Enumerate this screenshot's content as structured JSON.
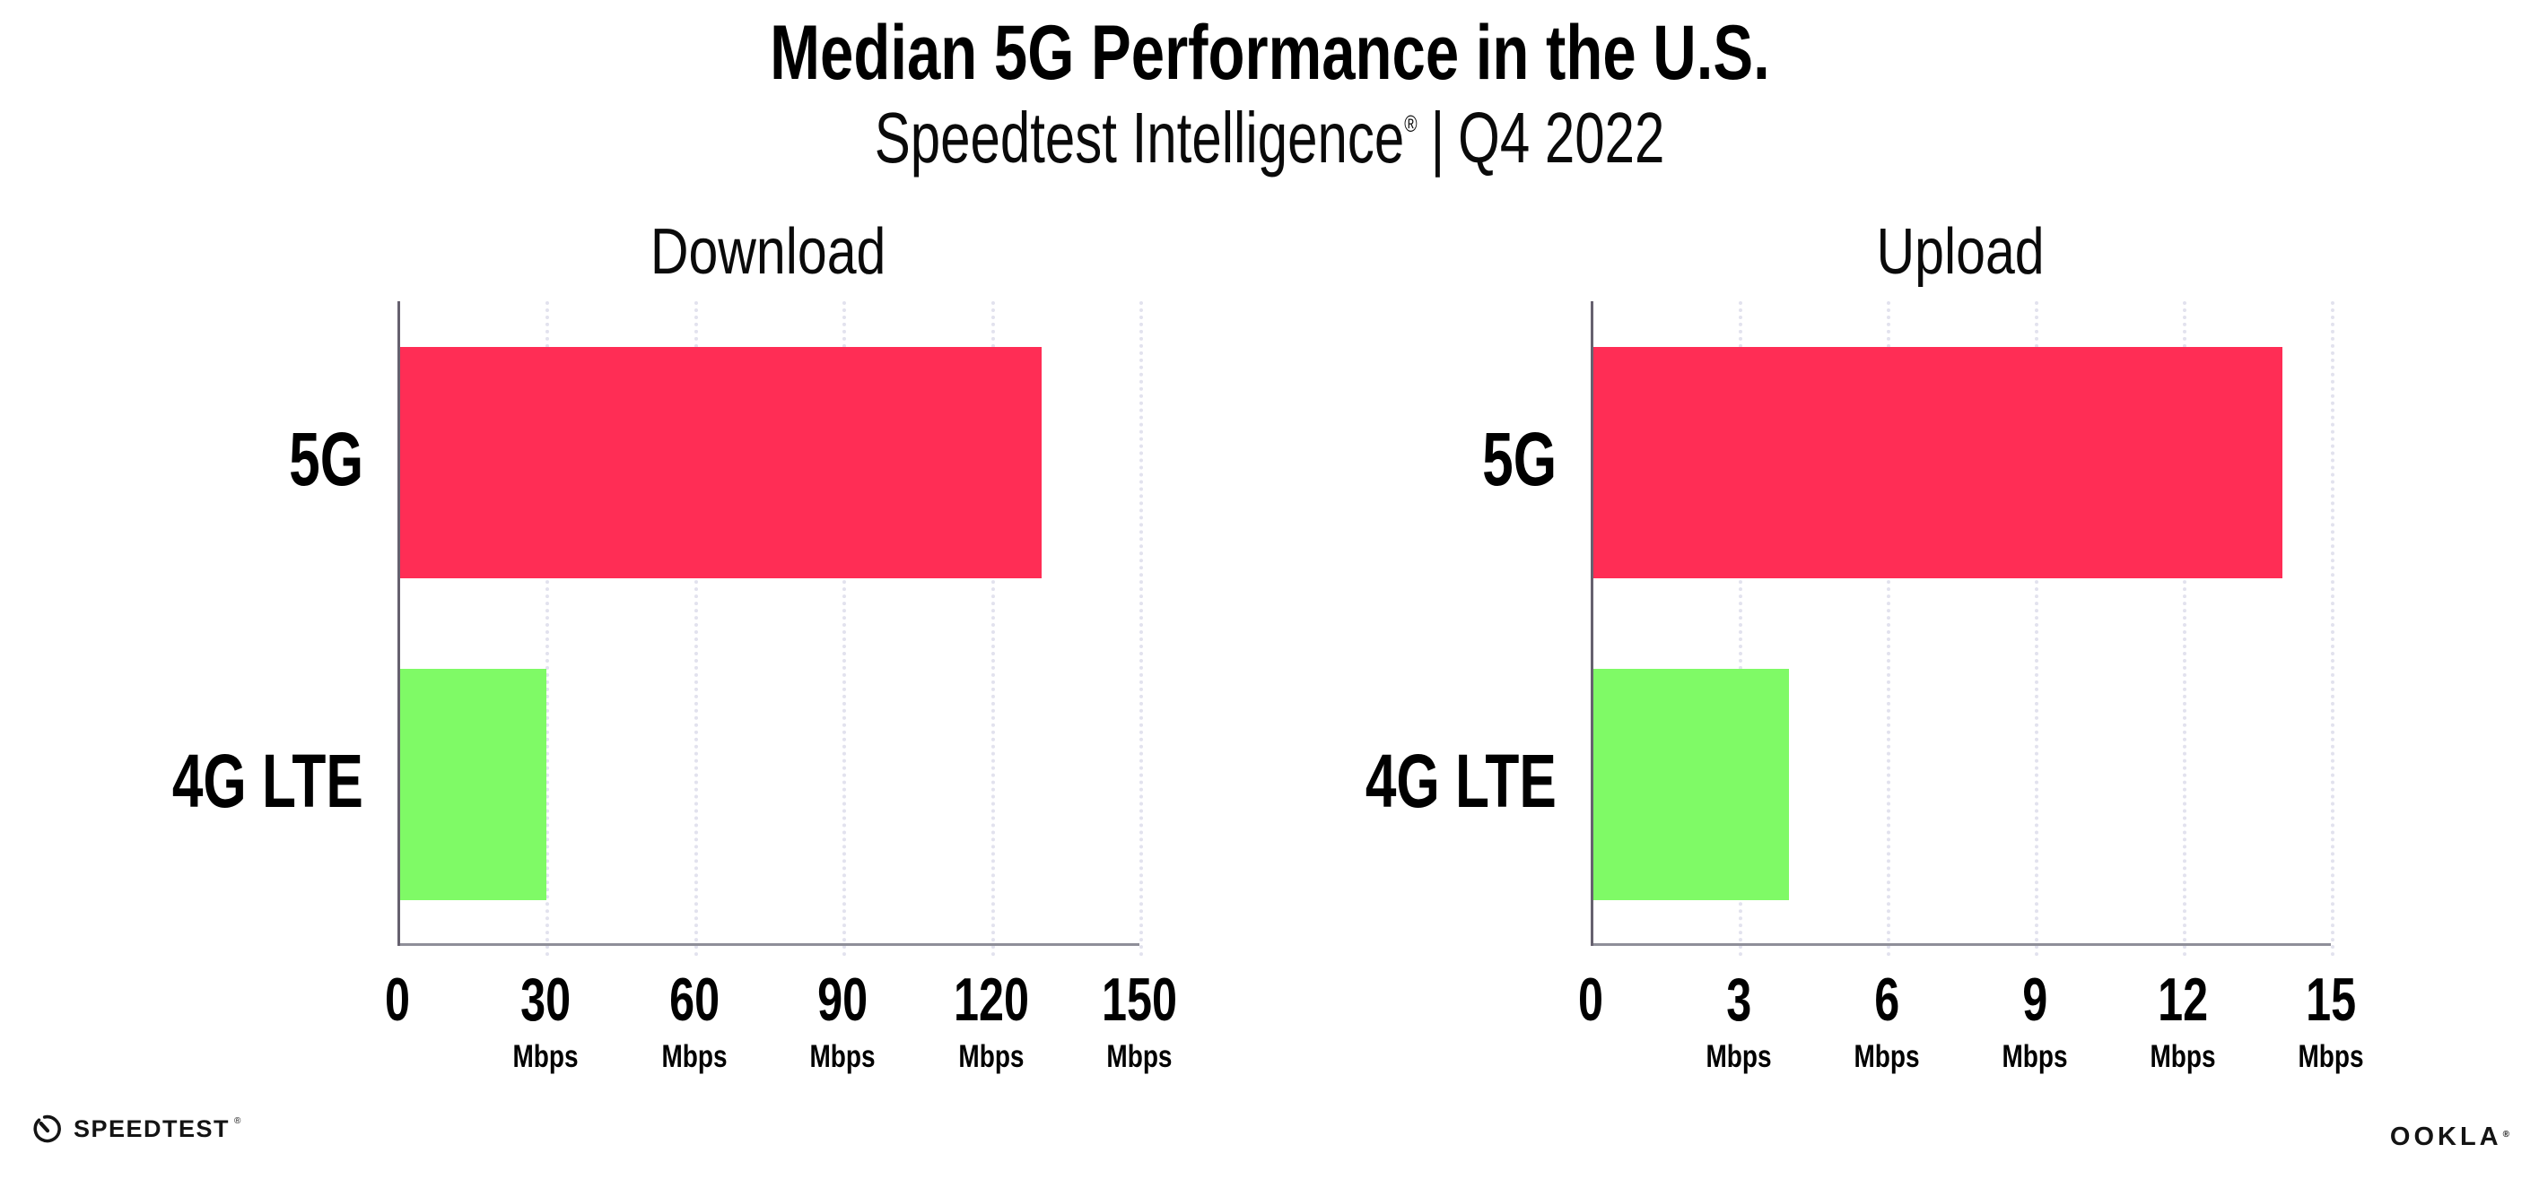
{
  "header": {
    "title": "Median 5G Performance in the U.S.",
    "subtitle_brand": "Speedtest Intelligence",
    "registered_mark": "®",
    "subtitle_sep": "|",
    "subtitle_period": "Q4 2022"
  },
  "colors": {
    "bar_5g": "#FF2D55",
    "bar_4g_lte": "#7FFA66",
    "gridline": "#E2E2EE",
    "y_axis": "#66616F",
    "x_axis": "#8F8F99",
    "text": "#000000"
  },
  "chart_data": [
    {
      "type": "bar",
      "orientation": "horizontal",
      "title": "Download",
      "categories": [
        "5G",
        "4G LTE"
      ],
      "values": [
        130,
        30
      ],
      "unit": "Mbps",
      "xlabel": "",
      "ylabel": "",
      "xlim": [
        0,
        150
      ],
      "xticks": [
        0,
        30,
        60,
        90,
        120,
        150
      ],
      "bar_colors": [
        "#FF2D55",
        "#7FFA66"
      ],
      "grid": "dotted-vertical",
      "legend": "none"
    },
    {
      "type": "bar",
      "orientation": "horizontal",
      "title": "Upload",
      "categories": [
        "5G",
        "4G LTE"
      ],
      "values": [
        14,
        4
      ],
      "unit": "Mbps",
      "xlabel": "",
      "ylabel": "",
      "xlim": [
        0,
        15
      ],
      "xticks": [
        0,
        3,
        6,
        9,
        12,
        15
      ],
      "bar_colors": [
        "#FF2D55",
        "#7FFA66"
      ],
      "grid": "dotted-vertical",
      "legend": "none"
    }
  ],
  "footer": {
    "speedtest_label": "SPEEDTEST",
    "speedtest_mark": "®",
    "ookla_label": "OOKLA",
    "ookla_mark": "®"
  }
}
